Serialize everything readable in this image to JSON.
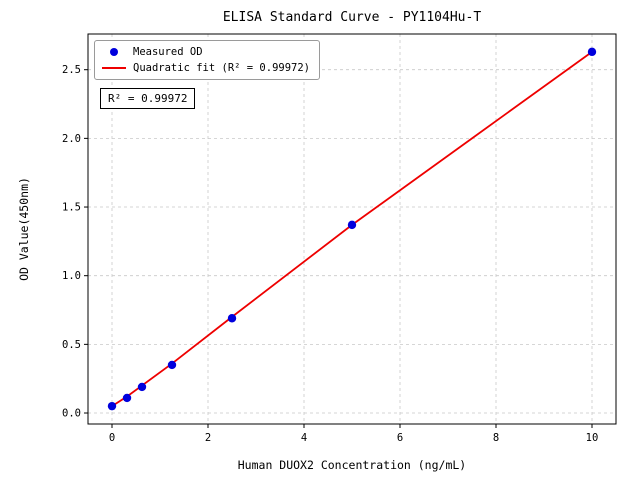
{
  "chart_data": {
    "type": "scatter",
    "title": "ELISA Standard Curve - PY1104Hu-T",
    "xlabel": "Human DUOX2 Concentration (ng/mL)",
    "ylabel": "OD Value(450nm)",
    "xlim": [
      -0.5,
      10.5
    ],
    "ylim": [
      -0.08,
      2.76
    ],
    "xticks": [
      0,
      2,
      4,
      6,
      8,
      10
    ],
    "yticks": [
      0,
      0.5,
      1,
      1.5,
      2,
      2.5
    ],
    "grid": true,
    "grid_style": "dashed",
    "legend_position": "upper-left",
    "annotation": "R² = 0.99972",
    "series": [
      {
        "name": "Measured OD",
        "type": "scatter",
        "color": "#0000dd",
        "x": [
          0,
          0.313,
          0.625,
          1.25,
          2.5,
          5,
          10
        ],
        "y": [
          0.05,
          0.11,
          0.19,
          0.35,
          0.69,
          1.37,
          2.63
        ]
      },
      {
        "name": "Quadratic fit (R² = 0.99972)",
        "type": "line",
        "color": "#ee0000",
        "x": [
          0,
          0.313,
          0.625,
          1.25,
          2.5,
          5,
          7.5,
          10
        ],
        "y": [
          0.05,
          0.12,
          0.2,
          0.36,
          0.7,
          1.37,
          2.0,
          2.63
        ]
      }
    ]
  }
}
